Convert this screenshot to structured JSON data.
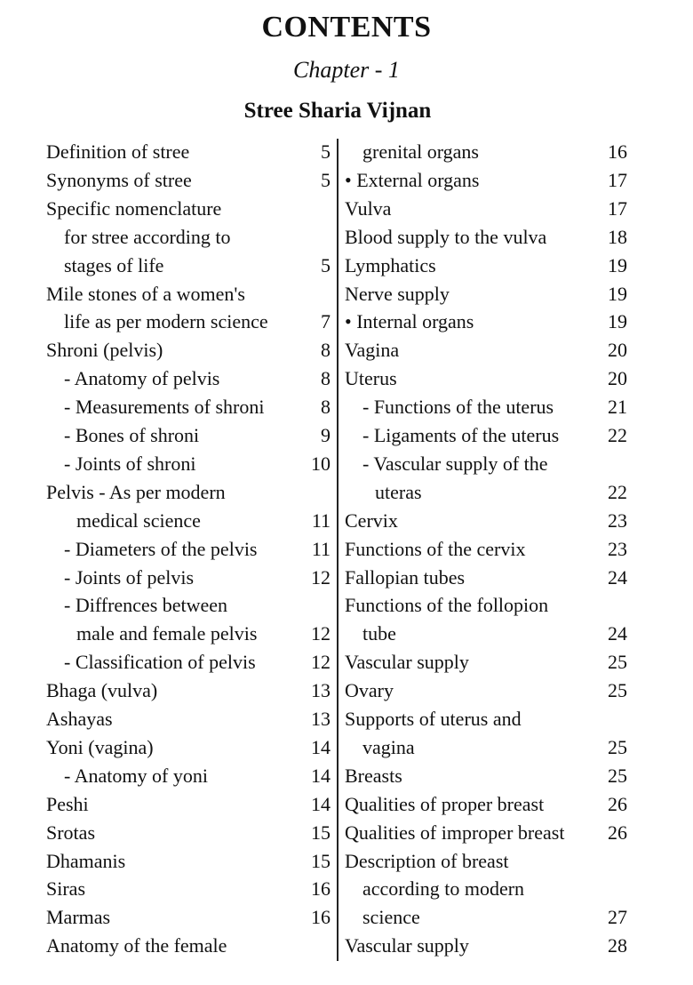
{
  "title": "CONTENTS",
  "chapter": "Chapter - 1",
  "subtitle": "Stree Sharia Vijnan",
  "left": [
    {
      "text": "Definition of stree",
      "page": "5",
      "indent": 0
    },
    {
      "text": "Synonyms of stree",
      "page": "5",
      "indent": 0
    },
    {
      "text": "Specific nomenclature",
      "page": "",
      "indent": 0
    },
    {
      "text": "for stree according to",
      "page": "",
      "indent": 1
    },
    {
      "text": "stages of life",
      "page": "5",
      "indent": 1
    },
    {
      "text": "Mile stones of a women's",
      "page": "",
      "indent": 0
    },
    {
      "text": "life as per modern science",
      "page": "7",
      "indent": 1
    },
    {
      "text": "Shroni (pelvis)",
      "page": "8",
      "indent": 0
    },
    {
      "text": "- Anatomy of pelvis",
      "page": "8",
      "indent": 1
    },
    {
      "text": "- Measurements of shroni",
      "page": "8",
      "indent": 1
    },
    {
      "text": "- Bones of shroni",
      "page": "9",
      "indent": 1
    },
    {
      "text": "- Joints of shroni",
      "page": "10",
      "indent": 1
    },
    {
      "text": "Pelvis - As per modern",
      "page": "",
      "indent": 0
    },
    {
      "text": "medical science",
      "page": "11",
      "indent": 2
    },
    {
      "text": "- Diameters of the pelvis",
      "page": "11",
      "indent": 1
    },
    {
      "text": "- Joints of pelvis",
      "page": "12",
      "indent": 1
    },
    {
      "text": "- Diffrences between",
      "page": "",
      "indent": 1
    },
    {
      "text": "male and female pelvis",
      "page": "12",
      "indent": 2
    },
    {
      "text": "- Classification of pelvis",
      "page": "12",
      "indent": 1
    },
    {
      "text": "Bhaga (vulva)",
      "page": "13",
      "indent": 0
    },
    {
      "text": "Ashayas",
      "page": "13",
      "indent": 0
    },
    {
      "text": "Yoni (vagina)",
      "page": "14",
      "indent": 0
    },
    {
      "text": "- Anatomy of yoni",
      "page": "14",
      "indent": 1
    },
    {
      "text": "Peshi",
      "page": "14",
      "indent": 0
    },
    {
      "text": "Srotas",
      "page": "15",
      "indent": 0
    },
    {
      "text": "Dhamanis",
      "page": "15",
      "indent": 0
    },
    {
      "text": "Siras",
      "page": "16",
      "indent": 0
    },
    {
      "text": "Marmas",
      "page": "16",
      "indent": 0
    },
    {
      "text": "Anatomy of the female",
      "page": "",
      "indent": 0
    }
  ],
  "right": [
    {
      "text": "grenital organs",
      "page": "16",
      "indent": 1
    },
    {
      "text": "• External organs",
      "page": "17",
      "indent": 0
    },
    {
      "text": "Vulva",
      "page": "17",
      "indent": 0
    },
    {
      "text": "Blood supply to the vulva",
      "page": "18",
      "indent": 0
    },
    {
      "text": "Lymphatics",
      "page": "19",
      "indent": 0
    },
    {
      "text": "Nerve supply",
      "page": "19",
      "indent": 0
    },
    {
      "text": "• Internal organs",
      "page": "19",
      "indent": 0
    },
    {
      "text": "Vagina",
      "page": "20",
      "indent": 0
    },
    {
      "text": "Uterus",
      "page": "20",
      "indent": 0
    },
    {
      "text": "- Functions of the uterus",
      "page": "21",
      "indent": 1
    },
    {
      "text": "- Ligaments of the uterus",
      "page": "22",
      "indent": 1
    },
    {
      "text": "- Vascular supply of the",
      "page": "",
      "indent": 1
    },
    {
      "text": "uteras",
      "page": "22",
      "indent": 2
    },
    {
      "text": "Cervix",
      "page": "23",
      "indent": 0
    },
    {
      "text": "Functions of the cervix",
      "page": "23",
      "indent": 0
    },
    {
      "text": "Fallopian tubes",
      "page": "24",
      "indent": 0
    },
    {
      "text": "Functions of the follopion",
      "page": "",
      "indent": 0
    },
    {
      "text": "tube",
      "page": "24",
      "indent": 1
    },
    {
      "text": "Vascular supply",
      "page": "25",
      "indent": 0
    },
    {
      "text": "Ovary",
      "page": "25",
      "indent": 0
    },
    {
      "text": "Supports of uterus and",
      "page": "",
      "indent": 0
    },
    {
      "text": "vagina",
      "page": "25",
      "indent": 1
    },
    {
      "text": "Breasts",
      "page": "25",
      "indent": 0
    },
    {
      "text": "Qualities of proper breast",
      "page": "26",
      "indent": 0
    },
    {
      "text": "Qualities of improper breast",
      "page": "26",
      "indent": 0
    },
    {
      "text": "Description of breast",
      "page": "",
      "indent": 0
    },
    {
      "text": "according to modern",
      "page": "",
      "indent": 1
    },
    {
      "text": "science",
      "page": "27",
      "indent": 1
    },
    {
      "text": "Vascular supply",
      "page": "28",
      "indent": 0
    }
  ]
}
